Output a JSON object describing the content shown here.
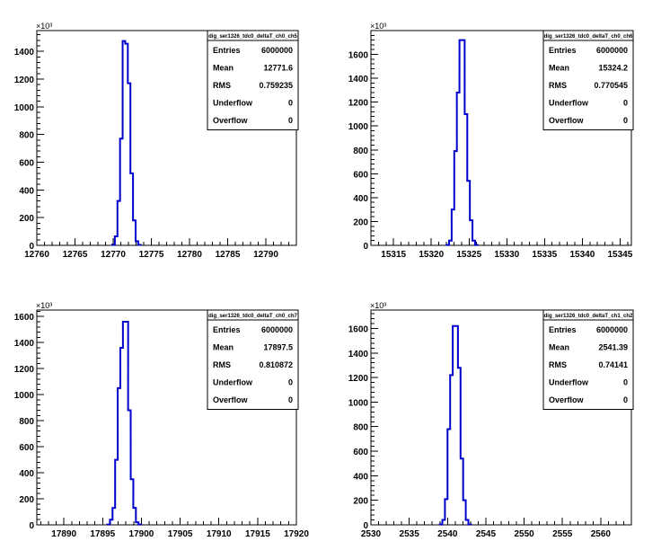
{
  "chart_data": [
    {
      "type": "histogram",
      "title": "dig_ser1326_tdc0_deltaT_ch0_ch5",
      "xlim": [
        12760,
        12794
      ],
      "ylim": [
        0,
        1550000
      ],
      "y_multiplier_label": "×10³",
      "x_ticks": [
        12760,
        12765,
        12770,
        12775,
        12780,
        12785,
        12790
      ],
      "y_ticks": [
        0,
        200,
        400,
        600,
        800,
        1000,
        1200,
        1400
      ],
      "y_tick_scale": 1000,
      "bin_width": 0.34,
      "bins": [
        {
          "x": 12769.88,
          "y": 5000
        },
        {
          "x": 12770.22,
          "y": 65000
        },
        {
          "x": 12770.56,
          "y": 320000
        },
        {
          "x": 12770.9,
          "y": 770000
        },
        {
          "x": 12771.24,
          "y": 1475000
        },
        {
          "x": 12771.58,
          "y": 1455000
        },
        {
          "x": 12771.92,
          "y": 1170000
        },
        {
          "x": 12772.26,
          "y": 520000
        },
        {
          "x": 12772.6,
          "y": 180000
        },
        {
          "x": 12772.94,
          "y": 30000
        },
        {
          "x": 12773.28,
          "y": 3000
        }
      ],
      "stats": [
        {
          "label": "Entries",
          "value": "6000000"
        },
        {
          "label": "Mean",
          "value": "12771.6"
        },
        {
          "label": "RMS",
          "value": "0.759235"
        },
        {
          "label": "Underflow",
          "value": "0"
        },
        {
          "label": "Overflow",
          "value": "0"
        }
      ]
    },
    {
      "type": "histogram",
      "title": "dig_ser1326_tdc0_deltaT_ch0_ch6",
      "xlim": [
        15312,
        15346.5
      ],
      "ylim": [
        0,
        1800000
      ],
      "y_multiplier_label": "×10³",
      "x_ticks": [
        15315,
        15320,
        15325,
        15330,
        15335,
        15340,
        15345
      ],
      "y_ticks": [
        0,
        200,
        400,
        600,
        800,
        1000,
        1200,
        1400,
        1600
      ],
      "y_tick_scale": 1000,
      "bin_width": 0.345,
      "bins": [
        {
          "x": 15322.0,
          "y": 3000
        },
        {
          "x": 15322.35,
          "y": 40000
        },
        {
          "x": 15322.69,
          "y": 300000
        },
        {
          "x": 15323.04,
          "y": 790000
        },
        {
          "x": 15323.38,
          "y": 1280000
        },
        {
          "x": 15323.73,
          "y": 1720000
        },
        {
          "x": 15324.07,
          "y": 1720000
        },
        {
          "x": 15324.42,
          "y": 1100000
        },
        {
          "x": 15324.76,
          "y": 540000
        },
        {
          "x": 15325.11,
          "y": 210000
        },
        {
          "x": 15325.45,
          "y": 40000
        },
        {
          "x": 15325.8,
          "y": 3000
        }
      ],
      "stats": [
        {
          "label": "Entries",
          "value": "6000000"
        },
        {
          "label": "Mean",
          "value": "15324.2"
        },
        {
          "label": "RMS",
          "value": "0.770545"
        },
        {
          "label": "Underflow",
          "value": "0"
        },
        {
          "label": "Overflow",
          "value": "0"
        }
      ]
    },
    {
      "type": "histogram",
      "title": "dig_ser1326_tdc0_deltaT_ch0_ch7",
      "xlim": [
        17886.5,
        17920
      ],
      "ylim": [
        0,
        1650000
      ],
      "y_multiplier_label": "×10³",
      "x_ticks": [
        17890,
        17895,
        17900,
        17905,
        17910,
        17915,
        17920
      ],
      "y_ticks": [
        0,
        200,
        400,
        600,
        800,
        1000,
        1200,
        1400,
        1600
      ],
      "y_tick_scale": 1000,
      "bin_width": 0.335,
      "bins": [
        {
          "x": 17895.6,
          "y": 3000
        },
        {
          "x": 17895.94,
          "y": 40000
        },
        {
          "x": 17896.27,
          "y": 130000
        },
        {
          "x": 17896.61,
          "y": 500000
        },
        {
          "x": 17896.94,
          "y": 1050000
        },
        {
          "x": 17897.28,
          "y": 1360000
        },
        {
          "x": 17897.61,
          "y": 1560000
        },
        {
          "x": 17897.95,
          "y": 1560000
        },
        {
          "x": 17898.28,
          "y": 880000
        },
        {
          "x": 17898.62,
          "y": 350000
        },
        {
          "x": 17898.95,
          "y": 130000
        },
        {
          "x": 17899.29,
          "y": 20000
        },
        {
          "x": 17899.62,
          "y": 3000
        }
      ],
      "stats": [
        {
          "label": "Entries",
          "value": "6000000"
        },
        {
          "label": "Mean",
          "value": "17897.5"
        },
        {
          "label": "RMS",
          "value": "0.810872"
        },
        {
          "label": "Underflow",
          "value": "0"
        },
        {
          "label": "Overflow",
          "value": "0"
        }
      ]
    },
    {
      "type": "histogram",
      "title": "dig_ser1326_tdc0_deltaT_ch1_ch2",
      "xlim": [
        2530,
        2564
      ],
      "ylim": [
        0,
        1750000
      ],
      "y_multiplier_label": "×10³",
      "x_ticks": [
        2530,
        2535,
        2540,
        2545,
        2550,
        2555,
        2560
      ],
      "y_ticks": [
        0,
        200,
        400,
        600,
        800,
        1000,
        1200,
        1400,
        1600
      ],
      "y_tick_scale": 1000,
      "bin_width": 0.34,
      "bins": [
        {
          "x": 2538.98,
          "y": 3000
        },
        {
          "x": 2539.32,
          "y": 40000
        },
        {
          "x": 2539.66,
          "y": 210000
        },
        {
          "x": 2540.0,
          "y": 780000
        },
        {
          "x": 2540.34,
          "y": 1220000
        },
        {
          "x": 2540.68,
          "y": 1620000
        },
        {
          "x": 2541.02,
          "y": 1620000
        },
        {
          "x": 2541.36,
          "y": 1280000
        },
        {
          "x": 2541.7,
          "y": 540000
        },
        {
          "x": 2542.04,
          "y": 200000
        },
        {
          "x": 2542.38,
          "y": 40000
        },
        {
          "x": 2542.72,
          "y": 3000
        }
      ],
      "stats": [
        {
          "label": "Entries",
          "value": "6000000"
        },
        {
          "label": "Mean",
          "value": "2541.39"
        },
        {
          "label": "RMS",
          "value": "0.74141"
        },
        {
          "label": "Underflow",
          "value": "0"
        },
        {
          "label": "Overflow",
          "value": "0"
        }
      ]
    }
  ],
  "colors": {
    "histogram_line": "#0000cc",
    "axes": "#000000",
    "background": "#ffffff"
  }
}
